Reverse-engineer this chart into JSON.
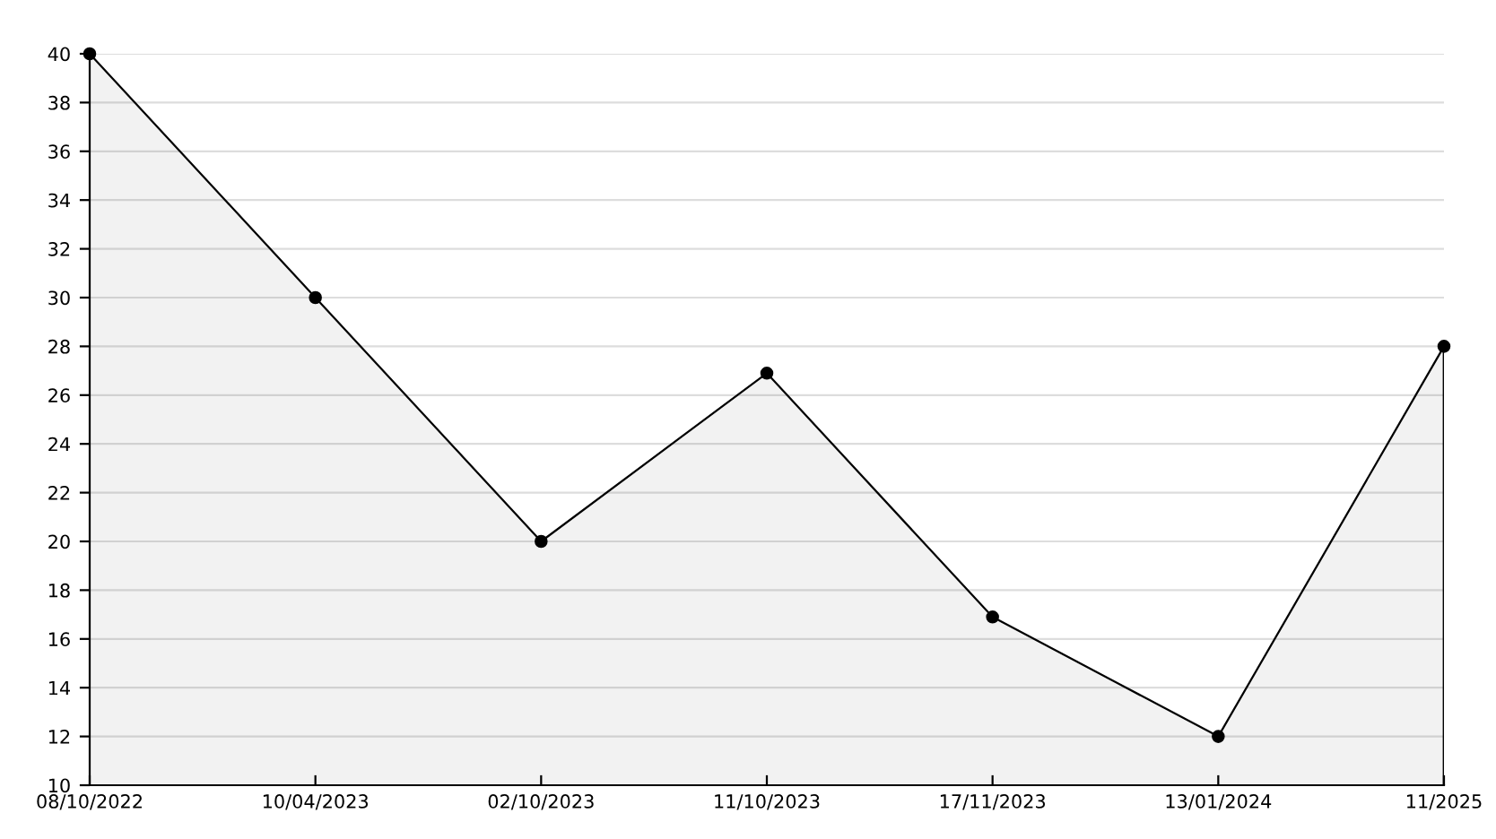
{
  "chart_data": {
    "type": "area",
    "categories": [
      "08/10/2022",
      "10/04/2023",
      "02/10/2023",
      "11/10/2023",
      "17/11/2023",
      "13/01/2024",
      "11/2025"
    ],
    "series": [
      {
        "color": "#000000",
        "values": [
          40,
          30,
          20,
          26.9,
          16.9,
          12,
          28
        ]
      }
    ],
    "ylim": [
      10,
      40
    ],
    "yticks": [
      10,
      12,
      14,
      16,
      18,
      20,
      22,
      24,
      26,
      28,
      30,
      32,
      34,
      36,
      38,
      40
    ],
    "grid": "y",
    "marker": "circle",
    "line_style": "solid"
  }
}
